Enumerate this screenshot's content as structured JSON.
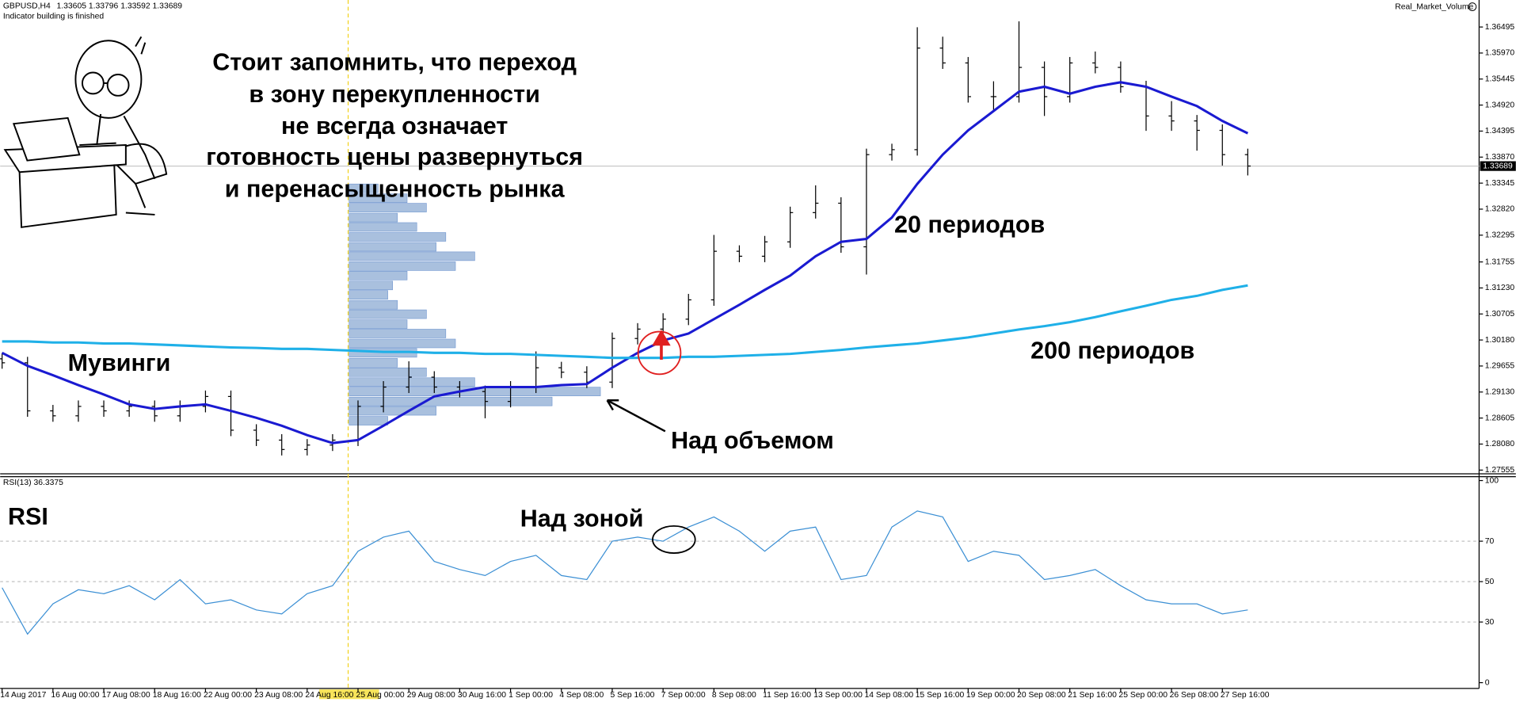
{
  "header": {
    "symbol": "GBPUSD,H4",
    "quote": [
      1.33605,
      1.33796,
      1.33592,
      1.33689
    ],
    "status": "Indicator building is finished",
    "indicator": "Real_Market_Volume"
  },
  "annotations": {
    "note": [
      "Стоит запомнить, что переход",
      "в зону перекупленности",
      "не всегда означает",
      "готовность цены развернуться",
      "и перенасыщенность рынка"
    ],
    "movings": "Мувинги",
    "ma20": "20 периодов",
    "ma200": "200 периодов",
    "above_volume": "Над объемом",
    "rsi": "RSI",
    "above_zone": "Над зоной"
  },
  "chart_data": [
    {
      "type": "ohlc",
      "categories": [
        "14 Aug 2017",
        null,
        "16 Aug 00:00",
        null,
        "17 Aug 08:00",
        null,
        "18 Aug 16:00",
        null,
        "22 Aug 00:00",
        null,
        "23 Aug 08:00",
        null,
        "24 Aug 16:00",
        null,
        "25 Aug 00:00",
        null,
        "29 Aug 08:00",
        null,
        "30 Aug 16:00",
        null,
        "1 Sep 00:00",
        null,
        "4 Sep 08:00",
        null,
        "5 Sep 16:00",
        null,
        "7 Sep 00:00",
        null,
        "8 Sep 08:00",
        null,
        "11 Sep 16:00",
        null,
        "13 Sep 00:00",
        null,
        "14 Sep 08:00",
        null,
        "15 Sep 16:00",
        null,
        "19 Sep 00:00",
        null,
        "20 Sep 08:00",
        null,
        "21 Sep 16:00",
        null,
        "25 Sep 00:00",
        null,
        "26 Sep 08:00",
        null,
        "27 Sep 16:00",
        null
      ],
      "color": "#000000",
      "ohlc": [
        [
          1.298,
          1.2992,
          1.296,
          1.2972
        ],
        [
          1.2972,
          1.2984,
          1.2863,
          1.2875
        ],
        [
          1.2875,
          1.2887,
          1.2853,
          1.2865
        ],
        [
          1.2865,
          1.2896,
          1.2853,
          1.2884
        ],
        [
          1.2884,
          1.2896,
          1.2863,
          1.2875
        ],
        [
          1.2875,
          1.2896,
          1.2863,
          1.2884
        ],
        [
          1.2884,
          1.2896,
          1.2853,
          1.2865
        ],
        [
          1.2865,
          1.2896,
          1.2853,
          1.2884
        ],
        [
          1.2884,
          1.2916,
          1.2872,
          1.2904
        ],
        [
          1.2904,
          1.2916,
          1.2824,
          1.2836
        ],
        [
          1.2836,
          1.2848,
          1.2804,
          1.2816
        ],
        [
          1.2816,
          1.2828,
          1.2785,
          1.2797
        ],
        [
          1.2797,
          1.2818,
          1.2785,
          1.2806
        ],
        [
          1.2806,
          1.2828,
          1.2794,
          1.2816
        ],
        [
          1.2816,
          1.2896,
          1.2804,
          1.2884
        ],
        [
          1.2884,
          1.2935,
          1.2872,
          1.2923
        ],
        [
          1.2923,
          1.2975,
          1.2911,
          1.2943
        ],
        [
          1.2943,
          1.2955,
          1.2911,
          1.2923
        ],
        [
          1.2923,
          1.2935,
          1.2902,
          1.2914
        ],
        [
          1.2914,
          1.2926,
          1.286,
          1.2894
        ],
        [
          1.2894,
          1.2935,
          1.2882,
          1.2923
        ],
        [
          1.2923,
          1.2995,
          1.2911,
          1.2962
        ],
        [
          1.2962,
          1.2974,
          1.2941,
          1.2953
        ],
        [
          1.2953,
          1.2965,
          1.2921,
          1.2933
        ],
        [
          1.2933,
          1.3033,
          1.2921,
          1.3021
        ],
        [
          1.3021,
          1.3052,
          1.3009,
          1.304
        ],
        [
          1.304,
          1.3072,
          1.3028,
          1.306
        ],
        [
          1.306,
          1.3111,
          1.3048,
          1.3099
        ],
        [
          1.3099,
          1.323,
          1.3087,
          1.3197
        ],
        [
          1.3197,
          1.3209,
          1.3175,
          1.3187
        ],
        [
          1.3187,
          1.3228,
          1.3175,
          1.3216
        ],
        [
          1.3216,
          1.3287,
          1.3204,
          1.3275
        ],
        [
          1.3275,
          1.333,
          1.3263,
          1.3294
        ],
        [
          1.3294,
          1.3306,
          1.3194,
          1.3206
        ],
        [
          1.3206,
          1.3404,
          1.315,
          1.3392
        ],
        [
          1.3392,
          1.3414,
          1.338,
          1.3402
        ],
        [
          1.3402,
          1.3649,
          1.339,
          1.3607
        ],
        [
          1.3607,
          1.363,
          1.3565,
          1.3577
        ],
        [
          1.3577,
          1.3589,
          1.3497,
          1.3509
        ],
        [
          1.3509,
          1.354,
          1.348,
          1.3509
        ],
        [
          1.3509,
          1.3661,
          1.3497,
          1.3568
        ],
        [
          1.3568,
          1.358,
          1.347,
          1.3509
        ],
        [
          1.3509,
          1.3589,
          1.3497,
          1.3577
        ],
        [
          1.3577,
          1.36,
          1.3556,
          1.3568
        ],
        [
          1.3568,
          1.358,
          1.3517,
          1.3529
        ],
        [
          1.3529,
          1.3541,
          1.344,
          1.347
        ],
        [
          1.347,
          1.35,
          1.344,
          1.346
        ],
        [
          1.346,
          1.3472,
          1.34,
          1.3441
        ],
        [
          1.3441,
          1.3453,
          1.337,
          1.3392
        ],
        [
          1.3392,
          1.3404,
          1.335,
          1.3369
        ]
      ],
      "series": [
        {
          "color": "#1a1ad1",
          "values": [
            1.2992,
            1.2966,
            1.2947,
            1.2927,
            1.2908,
            1.2888,
            1.2879,
            1.2884,
            1.2888,
            1.2875,
            1.2861,
            1.2845,
            1.2826,
            1.281,
            1.2816,
            1.2845,
            1.2875,
            1.2904,
            1.2914,
            1.2923,
            1.2923,
            1.2923,
            1.2927,
            1.2929,
            1.2962,
            1.2992,
            1.3017,
            1.3031,
            1.306,
            1.3089,
            1.3119,
            1.3148,
            1.3187,
            1.3216,
            1.3222,
            1.3265,
            1.3333,
            1.3392,
            1.3441,
            1.348,
            1.3519,
            1.3529,
            1.3515,
            1.3529,
            1.3538,
            1.3529,
            1.3509,
            1.349,
            1.346,
            1.3435
          ]
        },
        {
          "color": "#1fb0e8",
          "values": [
            1.3015,
            1.3015,
            1.3013,
            1.3013,
            1.3011,
            1.3011,
            1.3009,
            1.3007,
            1.3005,
            1.3003,
            1.3002,
            1.3,
            1.3,
            1.2998,
            1.2996,
            1.2994,
            1.2994,
            1.2992,
            1.2992,
            1.299,
            1.299,
            1.2988,
            1.2986,
            1.2984,
            1.2982,
            1.2982,
            1.2982,
            1.2984,
            1.2984,
            1.2986,
            1.2988,
            1.299,
            1.2994,
            1.2998,
            1.3003,
            1.3007,
            1.3011,
            1.3017,
            1.3023,
            1.3031,
            1.3039,
            1.3046,
            1.3054,
            1.3064,
            1.3076,
            1.3087,
            1.3099,
            1.3107,
            1.3119,
            1.3128
          ]
        }
      ],
      "volume_profile": {
        "color": "#a9c0de",
        "levels": [
          1.3324,
          1.3304,
          1.3285,
          1.3265,
          1.3246,
          1.3226,
          1.3206,
          1.3187,
          1.3167,
          1.3148,
          1.3128,
          1.3109,
          1.3089,
          1.307,
          1.305,
          1.3031,
          1.3011,
          1.2992,
          1.2972,
          1.2953,
          1.2933,
          1.2914,
          1.2894,
          1.2875,
          1.2855
        ],
        "volumes": [
          30,
          60,
          80,
          50,
          70,
          100,
          90,
          130,
          110,
          60,
          45,
          40,
          50,
          80,
          60,
          100,
          110,
          70,
          50,
          80,
          130,
          260,
          210,
          90,
          40
        ]
      },
      "last_price": 1.33689,
      "ylim": [
        1.2748,
        1.3704
      ],
      "yticks": [
        1.36495,
        {
          "value": 1.3597,
          "label": "1.35970"
        },
        1.35445,
        {
          "value": 1.3492,
          "label": "1.34920"
        },
        1.34395,
        {
          "value": 1.3387,
          "label": "1.33870"
        },
        1.33345,
        {
          "value": 1.3282,
          "label": "1.32820"
        },
        1.32295,
        1.31755,
        {
          "value": 1.3123,
          "label": "1.31230"
        },
        1.30705,
        {
          "value": 1.3018,
          "label": "1.30180"
        },
        1.29655,
        {
          "value": 1.2913,
          "label": "1.29130"
        },
        1.28605,
        {
          "value": 1.2808,
          "label": "1.28080"
        },
        1.27555
      ]
    },
    {
      "type": "line",
      "title": "RSI(13)",
      "last": 36.3375,
      "series": [
        {
          "color": "#3b8fd4",
          "values": [
            47,
            24,
            39,
            46,
            44,
            48,
            41,
            51,
            39,
            41,
            36,
            34,
            44,
            48,
            65,
            72,
            75,
            60,
            56,
            53,
            60,
            63,
            53,
            51,
            70,
            72,
            70,
            77,
            82,
            75,
            65,
            75,
            77,
            51,
            53,
            77,
            85,
            82,
            60,
            65,
            63,
            51,
            53,
            56,
            48,
            41,
            39,
            39,
            34,
            36
          ]
        }
      ],
      "ylim": [
        0,
        100
      ],
      "yticks": [
        100,
        70,
        50,
        30,
        0
      ],
      "grid": true
    }
  ]
}
